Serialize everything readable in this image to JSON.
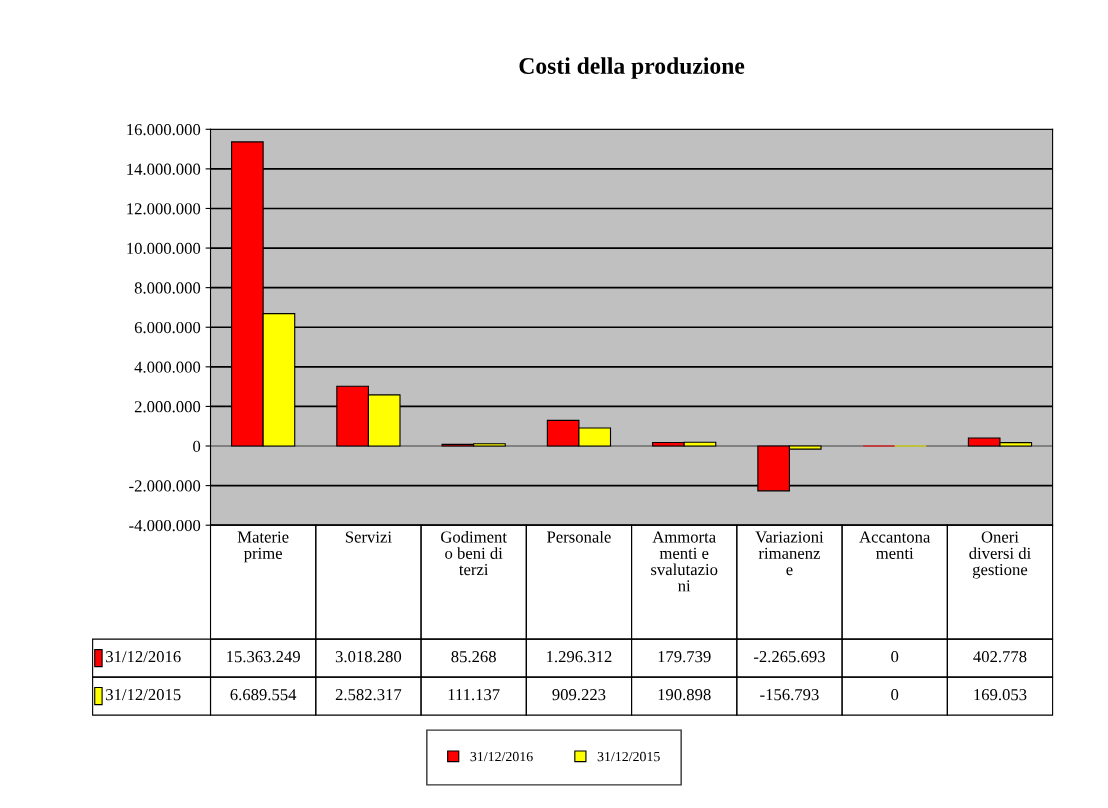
{
  "chart_data": {
    "type": "bar",
    "title": "Costi della produzione",
    "categories": [
      "Materie\nprime",
      "Servizi",
      "Godiment\no beni di\nterzi",
      "Personale",
      "Ammorta\nmenti e\nsvalutazio\nni",
      "Variazioni\nrimanenz\ne",
      "Accantona\nmenti",
      "Oneri\ndiversi di\ngestione"
    ],
    "series": [
      {
        "name": "31/12/2016",
        "color": "#ff0000",
        "values": [
          15363249,
          3018280,
          85268,
          1296312,
          179739,
          -2265693,
          0,
          402778
        ],
        "value_labels": [
          "15.363.249",
          "3.018.280",
          "85.268",
          "1.296.312",
          "179.739",
          "-2.265.693",
          "0",
          "402.778"
        ]
      },
      {
        "name": "31/12/2015",
        "color": "#ffff00",
        "values": [
          6689554,
          2582317,
          111137,
          909223,
          190898,
          -156793,
          0,
          169053
        ],
        "value_labels": [
          "6.689.554",
          "2.582.317",
          "111.137",
          "909.223",
          "190.898",
          "-156.793",
          "0",
          "169.053"
        ]
      }
    ],
    "ylim": [
      -4000000,
      16000000
    ],
    "yticks": [
      {
        "value": -4000000,
        "label": "-4.000.000"
      },
      {
        "value": -2000000,
        "label": "-2.000.000"
      },
      {
        "value": 0,
        "label": "0"
      },
      {
        "value": 2000000,
        "label": "2.000.000"
      },
      {
        "value": 4000000,
        "label": "4.000.000"
      },
      {
        "value": 6000000,
        "label": "6.000.000"
      },
      {
        "value": 8000000,
        "label": "8.000.000"
      },
      {
        "value": 10000000,
        "label": "10.000.000"
      },
      {
        "value": 12000000,
        "label": "12.000.000"
      },
      {
        "value": 14000000,
        "label": "14.000.000"
      },
      {
        "value": 16000000,
        "label": "16.000.000"
      }
    ],
    "grid": "y",
    "legend": "bottom"
  }
}
